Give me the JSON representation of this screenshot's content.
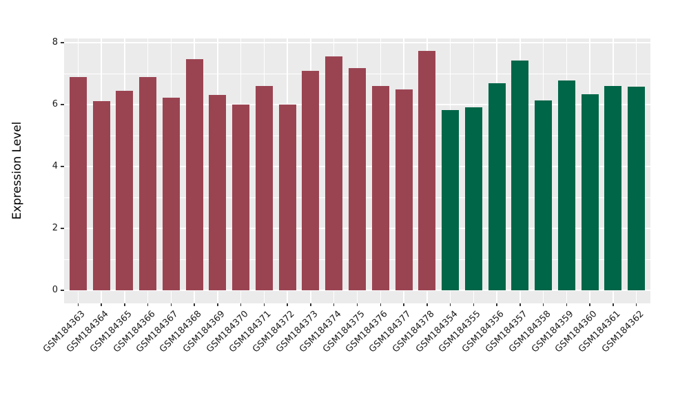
{
  "figure": {
    "background": "#FFFFFF",
    "panel_background": "#EBEBEB",
    "grid_color": "#FFFFFF",
    "tick_mark_color": "#333333",
    "axis_text_color": "#1A1A1A"
  },
  "chart_data": {
    "type": "bar",
    "title": "",
    "xlabel": "",
    "ylabel": "Expression Level",
    "ylim": [
      0,
      8
    ],
    "yticks": [
      0,
      2,
      4,
      6,
      8
    ],
    "ytick_labels": [
      "0",
      "2",
      "4",
      "6",
      "8"
    ],
    "yminor_gridlines": [
      1,
      3,
      5,
      7
    ],
    "grid": "on",
    "legend_position": "none",
    "x_tick_label_rotation_deg": 45,
    "categories": [
      "GSM184363",
      "GSM184364",
      "GSM184365",
      "GSM184366",
      "GSM184367",
      "GSM184368",
      "GSM184369",
      "GSM184370",
      "GSM184371",
      "GSM184372",
      "GSM184373",
      "GSM184374",
      "GSM184375",
      "GSM184376",
      "GSM184377",
      "GSM184378",
      "GSM184354",
      "GSM184355",
      "GSM184356",
      "GSM184357",
      "GSM184358",
      "GSM184359",
      "GSM184360",
      "GSM184361",
      "GSM184362"
    ],
    "values": [
      6.89,
      6.11,
      6.44,
      6.9,
      6.22,
      7.47,
      6.31,
      6.01,
      6.59,
      6.01,
      7.08,
      7.55,
      7.17,
      6.59,
      6.5,
      7.73,
      5.82,
      5.91,
      6.7,
      7.43,
      6.13,
      6.78,
      6.33,
      6.59,
      6.58
    ],
    "groups": [
      "A",
      "A",
      "A",
      "A",
      "A",
      "A",
      "A",
      "A",
      "A",
      "A",
      "A",
      "A",
      "A",
      "A",
      "A",
      "A",
      "B",
      "B",
      "B",
      "B",
      "B",
      "B",
      "B",
      "B",
      "B"
    ],
    "group_colors": {
      "A": "#9A4452",
      "B": "#006648"
    }
  }
}
